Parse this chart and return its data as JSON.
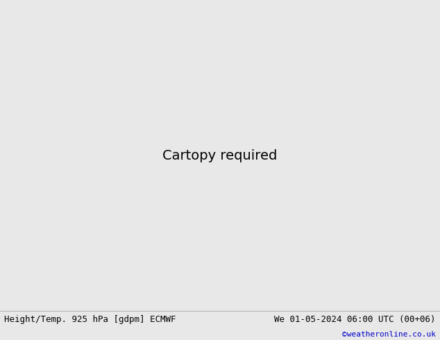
{
  "title_left": "Height/Temp. 925 hPa [gdpm] ECMWF",
  "title_right": "We 01-05-2024 06:00 UTC (00+06)",
  "copyright": "©weatheronline.co.uk",
  "title_left_color": "#000000",
  "title_right_color": "#000000",
  "copyright_color": "#0000cc",
  "bg_map_color": "#d8d8d8",
  "land_green_color": "#c8e8a0",
  "land_gray_color": "#b0b0b0",
  "ocean_color": "#d8d8d8",
  "fig_width": 6.34,
  "fig_height": 4.9,
  "dpi": 100,
  "bottom_bar_color": "#e8e8e8",
  "font_size_title": 9,
  "font_size_copyright": 8,
  "font_family": "DejaVu Sans Mono",
  "extent": [
    -28,
    42,
    27,
    72
  ],
  "height_contour_color": "#000000",
  "temp_cyan_color": "#00b8d0",
  "temp_green_color": "#50b840",
  "temp_orange_color": "#ff8c00",
  "temp_red_color": "#ff2800",
  "temp_darkred_color": "#cc0000",
  "temp_pink_color": "#e800e8",
  "temp_pink2_color": "#e000a0"
}
